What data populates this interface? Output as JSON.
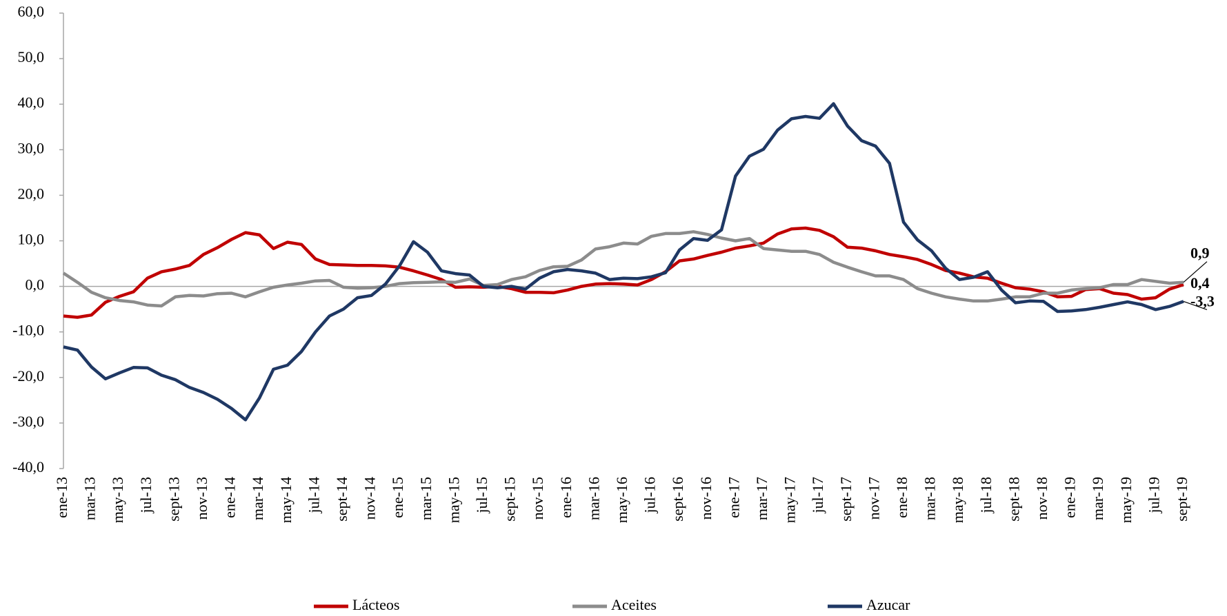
{
  "chart_data": {
    "type": "line",
    "categories": [
      "ene-13",
      null,
      "mar-13",
      null,
      "may-13",
      null,
      "jul-13",
      null,
      "sept-13",
      null,
      "nov-13",
      null,
      "ene-14",
      null,
      "mar-14",
      null,
      "may-14",
      null,
      "jul-14",
      null,
      "sept-14",
      null,
      "nov-14",
      null,
      "ene-15",
      null,
      "mar-15",
      null,
      "may-15",
      null,
      "jul-15",
      null,
      "sept-15",
      null,
      "nov-15",
      null,
      "ene-16",
      null,
      "mar-16",
      null,
      "may-16",
      null,
      "jul-16",
      null,
      "sept-16",
      null,
      "nov-16",
      null,
      "ene-17",
      null,
      "mar-17",
      null,
      "may-17",
      null,
      "jul-17",
      null,
      "sept-17",
      null,
      "nov-17",
      null,
      "ene-18",
      null,
      "mar-18",
      null,
      "may-18",
      null,
      "jul-18",
      null,
      "sept-18",
      null,
      "nov-18",
      null,
      "ene-19",
      null,
      "mar-19",
      null,
      "may-19",
      null,
      "jul-19",
      null,
      "sept-19"
    ],
    "series": [
      {
        "name": "Lácteos",
        "color": "#c00000",
        "values": [
          -6.5,
          -6.8,
          -6.3,
          -3.5,
          -2.2,
          -1.2,
          1.8,
          3.2,
          3.8,
          4.6,
          7.0,
          8.5,
          10.3,
          11.8,
          11.3,
          8.3,
          9.7,
          9.2,
          6.0,
          4.8,
          4.7,
          4.6,
          4.6,
          4.5,
          4.2,
          3.4,
          2.5,
          1.5,
          -0.2,
          -0.1,
          -0.2,
          0.0,
          -0.5,
          -1.3,
          -1.3,
          -1.4,
          -0.8,
          0.0,
          0.5,
          0.6,
          0.5,
          0.3,
          1.5,
          3.2,
          5.6,
          6.0,
          6.8,
          7.5,
          8.4,
          8.9,
          9.5,
          11.5,
          12.6,
          12.8,
          12.3,
          10.9,
          8.6,
          8.4,
          7.8,
          7.0,
          6.5,
          5.9,
          4.8,
          3.5,
          2.9,
          2.1,
          1.8,
          0.7,
          -0.3,
          -0.6,
          -1.2,
          -2.3,
          -2.2,
          -0.7,
          -0.5,
          -1.5,
          -1.8,
          -2.8,
          -2.5,
          -0.6,
          0.4
        ],
        "value_labels": [
          null,
          null,
          null,
          null,
          null,
          null,
          null,
          null,
          null,
          null,
          null,
          null,
          null,
          null,
          null,
          null,
          null,
          null,
          null,
          null,
          null,
          null,
          null,
          null,
          null,
          null,
          null,
          null,
          null,
          null,
          null,
          null,
          null,
          null,
          null,
          null,
          null,
          null,
          null,
          null,
          null,
          null,
          null,
          null,
          null,
          null,
          null,
          null,
          null,
          null,
          null,
          null,
          null,
          null,
          null,
          null,
          null,
          null,
          null,
          null,
          null,
          null,
          null,
          null,
          null,
          null,
          null,
          null,
          null,
          null,
          null,
          null,
          null,
          null,
          null,
          null,
          null,
          null,
          null,
          null,
          "0,4"
        ]
      },
      {
        "name": "Aceites",
        "color": "#8c8c8c",
        "values": [
          2.9,
          0.9,
          -1.3,
          -2.5,
          -3.1,
          -3.4,
          -4.1,
          -4.3,
          -2.3,
          -2.0,
          -2.1,
          -1.6,
          -1.5,
          -2.3,
          -1.2,
          -0.2,
          0.3,
          0.7,
          1.2,
          1.3,
          -0.2,
          -0.4,
          -0.3,
          0.0,
          0.6,
          0.8,
          0.9,
          1.0,
          0.9,
          1.6,
          0.2,
          0.4,
          1.5,
          2.1,
          3.5,
          4.3,
          4.4,
          5.8,
          8.2,
          8.7,
          9.5,
          9.3,
          11.0,
          11.6,
          11.6,
          12.0,
          11.4,
          10.6,
          10.0,
          10.5,
          8.3,
          8.0,
          7.7,
          7.7,
          7.0,
          5.3,
          4.2,
          3.2,
          2.3,
          2.3,
          1.5,
          -0.5,
          -1.5,
          -2.3,
          -2.8,
          -3.2,
          -3.2,
          -2.8,
          -2.3,
          -2.3,
          -1.5,
          -1.5,
          -0.8,
          -0.5,
          -0.3,
          0.4,
          0.4,
          1.5,
          1.1,
          0.7,
          0.9
        ],
        "value_labels": [
          null,
          null,
          null,
          null,
          null,
          null,
          null,
          null,
          null,
          null,
          null,
          null,
          null,
          null,
          null,
          null,
          null,
          null,
          null,
          null,
          null,
          null,
          null,
          null,
          null,
          null,
          null,
          null,
          null,
          null,
          null,
          null,
          null,
          null,
          null,
          null,
          null,
          null,
          null,
          null,
          null,
          null,
          null,
          null,
          null,
          null,
          null,
          null,
          null,
          null,
          null,
          null,
          null,
          null,
          null,
          null,
          null,
          null,
          null,
          null,
          null,
          null,
          null,
          null,
          null,
          null,
          null,
          null,
          null,
          null,
          null,
          null,
          null,
          null,
          null,
          null,
          null,
          null,
          null,
          null,
          "0,9"
        ]
      },
      {
        "name": "Azucar",
        "color": "#1f3864",
        "values": [
          -13.3,
          -14.0,
          -17.7,
          -20.3,
          -19.0,
          -17.8,
          -17.9,
          -19.5,
          -20.5,
          -22.2,
          -23.3,
          -24.8,
          -26.8,
          -29.3,
          -24.5,
          -18.2,
          -17.3,
          -14.3,
          -10.0,
          -6.5,
          -5.0,
          -2.5,
          -2.0,
          0.5,
          4.5,
          9.8,
          7.5,
          3.4,
          2.8,
          2.5,
          0.0,
          -0.3,
          0.0,
          -0.6,
          1.8,
          3.2,
          3.7,
          3.4,
          2.9,
          1.5,
          1.8,
          1.7,
          2.1,
          3.0,
          8.0,
          10.5,
          10.1,
          12.4,
          24.2,
          28.6,
          30.1,
          34.3,
          36.8,
          37.3,
          36.9,
          40.1,
          35.2,
          32.0,
          30.8,
          27.0,
          14.1,
          10.2,
          7.8,
          4.0,
          1.5,
          2.0,
          3.2,
          -0.8,
          -3.6,
          -3.2,
          -3.3,
          -5.5,
          -5.4,
          -5.1,
          -4.6,
          -4.0,
          -3.4,
          -4.0,
          -5.1,
          -4.4,
          -3.3
        ],
        "value_labels": [
          null,
          null,
          null,
          null,
          null,
          null,
          null,
          null,
          null,
          null,
          null,
          null,
          null,
          null,
          null,
          null,
          null,
          null,
          null,
          null,
          null,
          null,
          null,
          null,
          null,
          null,
          null,
          null,
          null,
          null,
          null,
          null,
          null,
          null,
          null,
          null,
          null,
          null,
          null,
          null,
          null,
          null,
          null,
          null,
          null,
          null,
          null,
          null,
          null,
          null,
          null,
          null,
          null,
          null,
          null,
          null,
          null,
          null,
          null,
          null,
          null,
          null,
          null,
          null,
          null,
          null,
          null,
          null,
          null,
          null,
          null,
          null,
          null,
          null,
          null,
          null,
          null,
          null,
          null,
          null,
          "-3,3"
        ]
      }
    ],
    "ylim": [
      -40,
      60
    ],
    "yticks": [
      {
        "value": -40,
        "label": "-40,0"
      },
      {
        "value": -30,
        "label": "-30,0"
      },
      {
        "value": -20,
        "label": "-20,0"
      },
      {
        "value": -10,
        "label": "-10,0"
      },
      {
        "value": 0,
        "label": "0,0"
      },
      {
        "value": 10,
        "label": "10,0"
      },
      {
        "value": 20,
        "label": "20,0"
      },
      {
        "value": 30,
        "label": "30,0"
      },
      {
        "value": 40,
        "label": "40,0"
      },
      {
        "value": 50,
        "label": "50,0"
      },
      {
        "value": 60,
        "label": "60,0"
      }
    ],
    "grid": false,
    "legend": "bottom"
  }
}
